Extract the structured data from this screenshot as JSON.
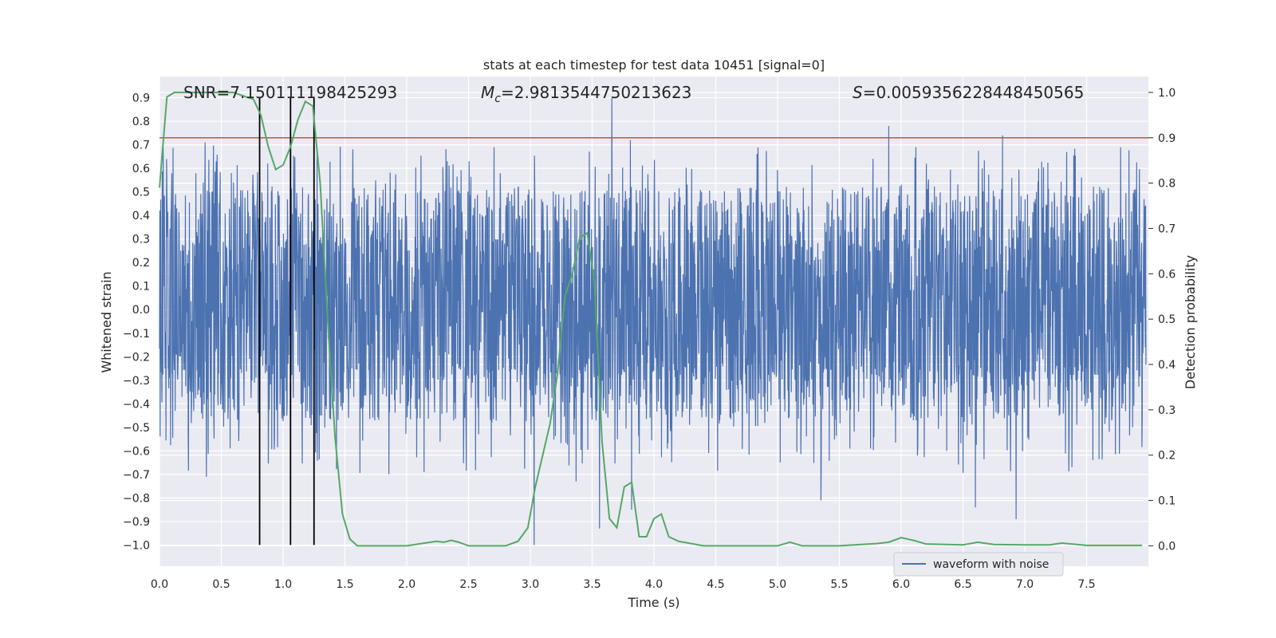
{
  "chart_data": {
    "type": "line",
    "title": "stats at each timestep for test data 10451 [signal=0]",
    "xlabel": "Time (s)",
    "ylabel": "Whitened strain",
    "y2label": "Detection probability",
    "xlim": [
      0,
      8
    ],
    "ylim": [
      -1.09,
      0.99
    ],
    "y2lim": [
      -0.045,
      1.035
    ],
    "x_ticks": [
      0.0,
      0.5,
      1.0,
      1.5,
      2.0,
      2.5,
      3.0,
      3.5,
      4.0,
      4.5,
      5.0,
      5.5,
      6.0,
      6.5,
      7.0,
      7.5
    ],
    "x_tick_labels": [
      "0.0",
      "0.5",
      "1.0",
      "1.5",
      "2.0",
      "2.5",
      "3.0",
      "3.5",
      "4.0",
      "4.5",
      "5.0",
      "5.5",
      "6.0",
      "6.5",
      "7.0",
      "7.5"
    ],
    "y_ticks": [
      0.9,
      0.8,
      0.7,
      0.6,
      0.5,
      0.4,
      0.3,
      0.2,
      0.1,
      0.0,
      -0.1,
      -0.2,
      -0.3,
      -0.4,
      -0.5,
      -0.6,
      -0.7,
      -0.8,
      -0.9,
      -1.0
    ],
    "y_tick_labels": [
      "0.9",
      "0.8",
      "0.7",
      "0.6",
      "0.5",
      "0.4",
      "0.3",
      "0.2",
      "0.1",
      "0.0",
      "−0.1",
      "−0.2",
      "−0.3",
      "−0.4",
      "−0.5",
      "−0.6",
      "−0.7",
      "−0.8",
      "−0.9",
      "−1.0"
    ],
    "y2_ticks": [
      1.0,
      0.9,
      0.8,
      0.7,
      0.6,
      0.5,
      0.4,
      0.3,
      0.2,
      0.1,
      0.0
    ],
    "y2_tick_labels": [
      "1.0",
      "0.9",
      "0.8",
      "0.7",
      "0.6",
      "0.5",
      "0.4",
      "0.3",
      "0.2",
      "0.1",
      "0.0"
    ],
    "grid": true,
    "legend": {
      "placement": "lower-right",
      "entries": [
        "waveform with noise"
      ]
    },
    "annotations": {
      "snr": "SNR=7.150111198425293",
      "mc_symbol": "M",
      "mc_sub": "c",
      "mc_value": "=2.9813544750213623",
      "s_symbol": "S",
      "s_value": "=0.0059356228448450565"
    },
    "waveform": {
      "name": "waveform with noise",
      "color": "#4c72b0",
      "x_range": [
        0,
        7.98
      ],
      "samples": 3200,
      "typical_band": [
        -0.45,
        0.5
      ],
      "notable_peaks": [
        {
          "x": 0.37,
          "y": 0.71
        },
        {
          "x": 3.66,
          "y": 0.9
        },
        {
          "x": 3.81,
          "y": 0.72
        },
        {
          "x": 5.9,
          "y": 0.78
        },
        {
          "x": 6.82,
          "y": 0.74
        },
        {
          "x": 6.12,
          "y": 0.69
        }
      ],
      "notable_troughs": [
        {
          "x": 3.03,
          "y": -1.0
        },
        {
          "x": 3.56,
          "y": -0.93
        },
        {
          "x": 3.82,
          "y": -0.85
        },
        {
          "x": 6.93,
          "y": -0.89
        },
        {
          "x": 6.6,
          "y": -0.84
        },
        {
          "x": 5.35,
          "y": -0.81
        },
        {
          "x": 0.38,
          "y": -0.71
        },
        {
          "x": 2.14,
          "y": -0.69
        },
        {
          "x": 3.37,
          "y": -0.73
        }
      ]
    },
    "probability": {
      "color": "#55a868",
      "x": [
        0.0,
        0.06,
        0.12,
        0.2,
        0.3,
        0.4,
        0.5,
        0.6,
        0.7,
        0.76,
        0.82,
        0.88,
        0.94,
        1.0,
        1.06,
        1.12,
        1.18,
        1.24,
        1.3,
        1.36,
        1.42,
        1.48,
        1.54,
        1.6,
        2.0,
        2.24,
        2.3,
        2.36,
        2.42,
        2.5,
        2.8,
        2.9,
        2.98,
        3.04,
        3.1,
        3.16,
        3.22,
        3.28,
        3.34,
        3.4,
        3.46,
        3.52,
        3.58,
        3.64,
        3.7,
        3.76,
        3.82,
        3.88,
        3.94,
        4.0,
        4.06,
        4.12,
        4.2,
        4.4,
        4.6,
        5.0,
        5.1,
        5.2,
        5.3,
        5.5,
        5.8,
        5.9,
        6.0,
        6.1,
        6.2,
        6.5,
        6.62,
        6.75,
        7.0,
        7.2,
        7.3,
        7.5,
        7.95
      ],
      "y": [
        0.79,
        0.99,
        1.0,
        1.0,
        1.0,
        1.0,
        1.0,
        1.0,
        0.99,
        0.985,
        0.95,
        0.88,
        0.83,
        0.84,
        0.88,
        0.94,
        0.98,
        0.97,
        0.8,
        0.5,
        0.24,
        0.07,
        0.015,
        0.0,
        0.0,
        0.01,
        0.008,
        0.012,
        0.008,
        0.0,
        0.0,
        0.01,
        0.04,
        0.13,
        0.2,
        0.27,
        0.38,
        0.55,
        0.6,
        0.68,
        0.69,
        0.58,
        0.23,
        0.06,
        0.04,
        0.13,
        0.14,
        0.02,
        0.02,
        0.06,
        0.07,
        0.02,
        0.01,
        0.0,
        0.0,
        0.0,
        0.008,
        0.0,
        0.0,
        0.0,
        0.005,
        0.008,
        0.018,
        0.012,
        0.004,
        0.002,
        0.008,
        0.003,
        0.002,
        0.002,
        0.006,
        0.001,
        0.001
      ]
    },
    "threshold": {
      "y2": 0.9,
      "color": "#c44e52"
    },
    "vertical_markers": {
      "x": [
        0.81,
        1.06,
        1.25
      ],
      "y_range": [
        -1.0,
        0.9
      ],
      "color": "#000000"
    }
  }
}
